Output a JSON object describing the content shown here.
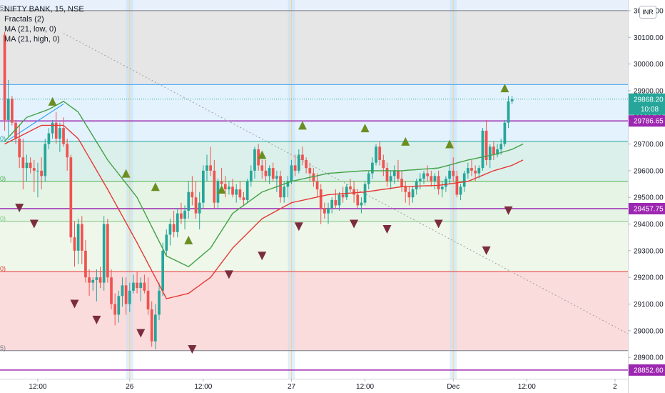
{
  "legend": {
    "symbol": "NIFTY BANK, 15, NSE",
    "fractals": "Fractals (2)",
    "ma_low": "MA (21, low, 0)",
    "ma_high": "MA (21, high, 0)"
  },
  "currency_button": "INR",
  "colors": {
    "up": "#26a69a",
    "down": "#ef5350",
    "fractal_up": "#6b8e23",
    "fractal_down": "#7b2d3e",
    "ma_low": "#e53935",
    "ma_high": "#43a047",
    "hline_purple": "#9c27b0",
    "price_badge": "#26a69a",
    "grid_text": "#131722"
  },
  "chart_data": {
    "type": "candlestick",
    "symbol": "NIFTY BANK",
    "interval": "15",
    "exchange": "NSE",
    "currency": "INR",
    "ylim": [
      28820,
      30240
    ],
    "y_ticks": [
      28900,
      29000,
      29100,
      29200,
      29300,
      29400,
      29500,
      29600,
      29700,
      29800,
      29900,
      30000,
      30100,
      30200
    ],
    "y_tick_labels": [
      "28900.00",
      "29000.00",
      "29100.00",
      "29200.00",
      "29300.00",
      "29400.00",
      "29500.00",
      "29600.00",
      "29700.00",
      "29800.00",
      "29900.00",
      "30000.00",
      "30100.00",
      "30200.00"
    ],
    "x_tick_labels": [
      "12:00",
      "26",
      "12:00",
      "27",
      "12:00",
      "Dec",
      "12:00",
      "2"
    ],
    "x_tick_bars": [
      9,
      34,
      54,
      78,
      98,
      122,
      142,
      166
    ],
    "bar_count": 170,
    "last_price": "29868.20",
    "countdown": "10:08",
    "price_labels": [
      {
        "value": "29786.65",
        "price": 29786.65,
        "color": "#9c27b0"
      },
      {
        "value": "29457.75",
        "price": 29457.75,
        "color": "#9c27b0"
      },
      {
        "value": "28852.60",
        "price": 28852.6,
        "color": "#9c27b0"
      }
    ],
    "fib_zones": [
      {
        "from": 29923,
        "to": 30200,
        "color": "#e6e6e6"
      },
      {
        "from": 29710,
        "to": 29923,
        "color": "#e3f2fd"
      },
      {
        "from": 29560,
        "to": 29710,
        "color": "#dbf0ea"
      },
      {
        "from": 29410,
        "to": 29560,
        "color": "#e6f4e6"
      },
      {
        "from": 29222,
        "to": 29410,
        "color": "#eef7ea"
      },
      {
        "from": 28925,
        "to": 29222,
        "color": "#fbdcdc"
      }
    ],
    "fib_levels": [
      {
        "price": 30200,
        "color": "#787b86"
      },
      {
        "price": 29923,
        "color": "#42a5f5"
      },
      {
        "price": 29710,
        "color": "#26a69a"
      },
      {
        "price": 29560,
        "color": "#4caf50"
      },
      {
        "price": 29410,
        "color": "#81c784"
      },
      {
        "price": 29222,
        "color": "#e53935"
      },
      {
        "price": 28925,
        "color": "#787b86"
      }
    ],
    "fib_left_labels": [
      "5)",
      "0)",
      "0)",
      "0)",
      "0)",
      "5)"
    ],
    "hlines": [
      29786.65,
      29457.75,
      28852.6
    ],
    "trend_line": {
      "from": [
        1,
        29715
      ],
      "to": [
        16,
        29850
      ]
    },
    "dashed_line": {
      "from": [
        16,
        30115
      ],
      "to": [
        170,
        28985
      ]
    },
    "session_bars": [
      34,
      78,
      122
    ],
    "candles": [
      [
        30110,
        30120,
        29750,
        29790
      ],
      [
        29790,
        29940,
        29730,
        29870
      ],
      [
        29870,
        29880,
        29770,
        29780
      ],
      [
        29780,
        29790,
        29700,
        29720
      ],
      [
        29720,
        29770,
        29610,
        29650
      ],
      [
        29650,
        29720,
        29530,
        29610
      ],
      [
        29610,
        29660,
        29560,
        29630
      ],
      [
        29630,
        29650,
        29590,
        29610
      ],
      [
        29610,
        29640,
        29520,
        29600
      ],
      [
        29600,
        29630,
        29500,
        29600
      ],
      [
        29600,
        29650,
        29530,
        29580
      ],
      [
        29580,
        29720,
        29560,
        29700
      ],
      [
        29700,
        29760,
        29680,
        29740
      ],
      [
        29740,
        29790,
        29720,
        29780
      ],
      [
        29780,
        29820,
        29700,
        29720
      ],
      [
        29720,
        29780,
        29670,
        29760
      ],
      [
        29760,
        29800,
        29690,
        29700
      ],
      [
        29700,
        29720,
        29600,
        29650
      ],
      [
        29650,
        29660,
        29330,
        29350
      ],
      [
        29350,
        29410,
        29240,
        29300
      ],
      [
        29300,
        29420,
        29250,
        29400
      ],
      [
        29400,
        29430,
        29250,
        29300
      ],
      [
        29300,
        29340,
        29180,
        29200
      ],
      [
        29200,
        29230,
        29130,
        29180
      ],
      [
        29180,
        29200,
        29150,
        29190
      ],
      [
        29190,
        29230,
        29110,
        29200
      ],
      [
        29200,
        29240,
        29160,
        29180
      ],
      [
        29180,
        29430,
        29150,
        29400
      ],
      [
        29400,
        29420,
        29180,
        29200
      ],
      [
        29200,
        29230,
        29080,
        29100
      ],
      [
        29100,
        29140,
        29020,
        29060
      ],
      [
        29060,
        29150,
        29030,
        29130
      ],
      [
        29130,
        29200,
        29090,
        29170
      ],
      [
        29170,
        29200,
        29060,
        29100
      ],
      [
        29100,
        29180,
        29070,
        29150
      ],
      [
        29150,
        29210,
        29140,
        29180
      ],
      [
        29180,
        29220,
        29140,
        29160
      ],
      [
        29160,
        29200,
        29110,
        29180
      ],
      [
        29180,
        29210,
        29140,
        29150
      ],
      [
        29150,
        29200,
        29060,
        29080
      ],
      [
        29080,
        29110,
        28940,
        28960
      ],
      [
        28960,
        29100,
        28930,
        29060
      ],
      [
        29060,
        29180,
        29040,
        29150
      ],
      [
        29150,
        29330,
        29130,
        29300
      ],
      [
        29300,
        29380,
        29280,
        29360
      ],
      [
        29360,
        29420,
        29320,
        29400
      ],
      [
        29400,
        29450,
        29350,
        29370
      ],
      [
        29370,
        29460,
        29350,
        29440
      ],
      [
        29440,
        29480,
        29400,
        29420
      ],
      [
        29420,
        29470,
        29380,
        29450
      ],
      [
        29450,
        29560,
        29420,
        29520
      ],
      [
        29520,
        29580,
        29470,
        29500
      ],
      [
        29500,
        29560,
        29420,
        29440
      ],
      [
        29440,
        29520,
        29380,
        29480
      ],
      [
        29480,
        29620,
        29460,
        29600
      ],
      [
        29600,
        29660,
        29560,
        29620
      ],
      [
        29620,
        29690,
        29580,
        29600
      ],
      [
        29600,
        29640,
        29460,
        29480
      ],
      [
        29480,
        29570,
        29460,
        29560
      ],
      [
        29560,
        29610,
        29530,
        29550
      ],
      [
        29550,
        29580,
        29500,
        29530
      ],
      [
        29530,
        29560,
        29510,
        29540
      ],
      [
        29540,
        29570,
        29500,
        29510
      ],
      [
        29510,
        29550,
        29480,
        29530
      ],
      [
        29530,
        29560,
        29490,
        29500
      ],
      [
        29500,
        29520,
        29470,
        29490
      ],
      [
        29490,
        29570,
        29480,
        29560
      ],
      [
        29560,
        29620,
        29540,
        29600
      ],
      [
        29600,
        29690,
        29570,
        29680
      ],
      [
        29680,
        29700,
        29600,
        29620
      ],
      [
        29620,
        29640,
        29570,
        29600
      ],
      [
        29600,
        29640,
        29560,
        29580
      ],
      [
        29580,
        29620,
        29550,
        29610
      ],
      [
        29610,
        29630,
        29560,
        29570
      ],
      [
        29570,
        29600,
        29520,
        29580
      ],
      [
        29580,
        29600,
        29480,
        29500
      ],
      [
        29500,
        29560,
        29480,
        29540
      ],
      [
        29540,
        29580,
        29500,
        29560
      ],
      [
        29560,
        29640,
        29550,
        29620
      ],
      [
        29620,
        29660,
        29580,
        29600
      ],
      [
        29600,
        29680,
        29590,
        29660
      ],
      [
        29660,
        29690,
        29620,
        29640
      ],
      [
        29640,
        29650,
        29590,
        29610
      ],
      [
        29610,
        29630,
        29560,
        29590
      ],
      [
        29590,
        29610,
        29540,
        29560
      ],
      [
        29560,
        29590,
        29500,
        29530
      ],
      [
        29530,
        29550,
        29400,
        29460
      ],
      [
        29460,
        29480,
        29420,
        29440
      ],
      [
        29440,
        29480,
        29400,
        29460
      ],
      [
        29460,
        29500,
        29440,
        29490
      ],
      [
        29490,
        29530,
        29460,
        29470
      ],
      [
        29470,
        29520,
        29450,
        29510
      ],
      [
        29510,
        29540,
        29480,
        29500
      ],
      [
        29500,
        29550,
        29490,
        29540
      ],
      [
        29540,
        29570,
        29520,
        29530
      ],
      [
        29530,
        29560,
        29480,
        29510
      ],
      [
        29510,
        29530,
        29460,
        29470
      ],
      [
        29470,
        29500,
        29440,
        29480
      ],
      [
        29480,
        29560,
        29470,
        29550
      ],
      [
        29550,
        29600,
        29530,
        29590
      ],
      [
        29590,
        29650,
        29570,
        29630
      ],
      [
        29630,
        29700,
        29620,
        29690
      ],
      [
        29690,
        29710,
        29620,
        29640
      ],
      [
        29640,
        29660,
        29580,
        29610
      ],
      [
        29610,
        29630,
        29540,
        29560
      ],
      [
        29560,
        29600,
        29530,
        29580
      ],
      [
        29580,
        29620,
        29550,
        29600
      ],
      [
        29600,
        29640,
        29560,
        29570
      ],
      [
        29570,
        29600,
        29520,
        29540
      ],
      [
        29540,
        29560,
        29480,
        29520
      ],
      [
        29520,
        29540,
        29470,
        29500
      ],
      [
        29500,
        29540,
        29480,
        29530
      ],
      [
        29530,
        29570,
        29510,
        29560
      ],
      [
        29560,
        29590,
        29530,
        29570
      ],
      [
        29570,
        29600,
        29550,
        29590
      ],
      [
        29590,
        29620,
        29560,
        29580
      ],
      [
        29580,
        29600,
        29540,
        29560
      ],
      [
        29560,
        29590,
        29530,
        29580
      ],
      [
        29580,
        29600,
        29510,
        29530
      ],
      [
        29530,
        29560,
        29500,
        29540
      ],
      [
        29540,
        29580,
        29520,
        29570
      ],
      [
        29570,
        29620,
        29550,
        29600
      ],
      [
        29600,
        29650,
        29560,
        29580
      ],
      [
        29580,
        29600,
        29500,
        29510
      ],
      [
        29510,
        29550,
        29490,
        29540
      ],
      [
        29540,
        29600,
        29520,
        29590
      ],
      [
        29590,
        29630,
        29570,
        29610
      ],
      [
        29610,
        29640,
        29580,
        29600
      ],
      [
        29600,
        29620,
        29560,
        29590
      ],
      [
        29590,
        29620,
        29570,
        29610
      ],
      [
        29610,
        29760,
        29600,
        29750
      ],
      [
        29750,
        29790,
        29620,
        29640
      ],
      [
        29640,
        29700,
        29610,
        29690
      ],
      [
        29690,
        29710,
        29640,
        29660
      ],
      [
        29660,
        29700,
        29650,
        29680
      ],
      [
        29680,
        29720,
        29660,
        29700
      ],
      [
        29700,
        29790,
        29690,
        29780
      ],
      [
        29780,
        29880,
        29760,
        29860
      ],
      [
        29860,
        29880,
        29850,
        29868.2
      ]
    ],
    "ma_low_anchors": [
      [
        0,
        29700
      ],
      [
        10,
        29770
      ],
      [
        16,
        29770
      ],
      [
        20,
        29720
      ],
      [
        28,
        29530
      ],
      [
        36,
        29330
      ],
      [
        44,
        29120
      ],
      [
        50,
        29140
      ],
      [
        56,
        29200
      ],
      [
        62,
        29310
      ],
      [
        70,
        29420
      ],
      [
        78,
        29480
      ],
      [
        88,
        29510
      ],
      [
        98,
        29520
      ],
      [
        108,
        29540
      ],
      [
        118,
        29545
      ],
      [
        126,
        29560
      ],
      [
        133,
        29600
      ],
      [
        138,
        29620
      ],
      [
        141,
        29640
      ]
    ],
    "ma_high_anchors": [
      [
        0,
        29710
      ],
      [
        6,
        29800
      ],
      [
        12,
        29830
      ],
      [
        16,
        29860
      ],
      [
        20,
        29820
      ],
      [
        28,
        29640
      ],
      [
        36,
        29500
      ],
      [
        44,
        29280
      ],
      [
        50,
        29240
      ],
      [
        56,
        29310
      ],
      [
        62,
        29440
      ],
      [
        70,
        29520
      ],
      [
        78,
        29560
      ],
      [
        88,
        29590
      ],
      [
        98,
        29600
      ],
      [
        108,
        29600
      ],
      [
        118,
        29610
      ],
      [
        126,
        29640
      ],
      [
        133,
        29660
      ],
      [
        138,
        29680
      ],
      [
        141,
        29700
      ]
    ],
    "fractals_up": [
      [
        13,
        29860
      ],
      [
        33,
        29590
      ],
      [
        41,
        29540
      ],
      [
        50,
        29340
      ],
      [
        59,
        29530
      ],
      [
        70,
        29660
      ],
      [
        81,
        29770
      ],
      [
        98,
        29760
      ],
      [
        109,
        29710
      ],
      [
        121,
        29700
      ],
      [
        136,
        29910
      ]
    ],
    "fractals_down": [
      [
        4,
        29460
      ],
      [
        8,
        29400
      ],
      [
        19,
        29100
      ],
      [
        25,
        29040
      ],
      [
        37,
        28990
      ],
      [
        51,
        28930
      ],
      [
        61,
        29210
      ],
      [
        70,
        29280
      ],
      [
        80,
        29390
      ],
      [
        95,
        29400
      ],
      [
        104,
        29380
      ],
      [
        118,
        29400
      ],
      [
        131,
        29300
      ],
      [
        137,
        29450
      ]
    ]
  }
}
